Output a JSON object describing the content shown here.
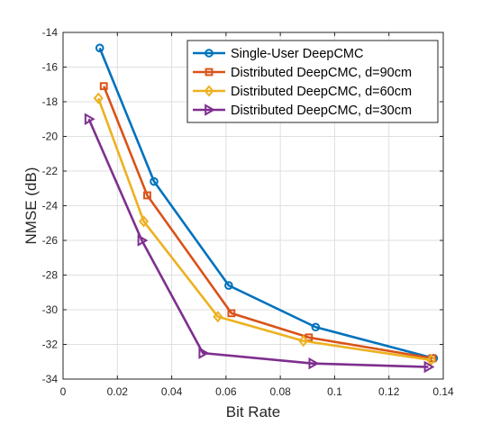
{
  "chart_data": {
    "type": "line",
    "title": "",
    "xlabel": "Bit Rate",
    "ylabel": "NMSE (dB)",
    "xlim": [
      0,
      0.14
    ],
    "ylim": [
      -34,
      -14
    ],
    "xticks": [
      0,
      0.02,
      0.04,
      0.06,
      0.08,
      0.1,
      0.12,
      0.14
    ],
    "xtick_labels": [
      "0",
      "0.02",
      "0.04",
      "0.06",
      "0.08",
      "0.1",
      "0.12",
      "0.14"
    ],
    "yticks": [
      -34,
      -32,
      -30,
      -28,
      -26,
      -24,
      -22,
      -20,
      -18,
      -16,
      -14
    ],
    "ytick_labels": [
      "-34",
      "-32",
      "-30",
      "-28",
      "-26",
      "-24",
      "-22",
      "-20",
      "-18",
      "-16",
      "-14"
    ],
    "grid": true,
    "legend_position": "top-right",
    "series": [
      {
        "name": "Single-User DeepCMC",
        "color": "#0072BD",
        "marker": "circle",
        "x": [
          0.0135,
          0.0335,
          0.061,
          0.093,
          0.1365
        ],
        "y": [
          -14.9,
          -22.6,
          -28.6,
          -31.0,
          -32.8
        ]
      },
      {
        "name": "Distributed DeepCMC, d=90cm",
        "color": "#D95319",
        "marker": "square",
        "x": [
          0.015,
          0.031,
          0.062,
          0.0905,
          0.136
        ],
        "y": [
          -17.1,
          -23.4,
          -30.2,
          -31.6,
          -32.8
        ]
      },
      {
        "name": "Distributed DeepCMC, d=60cm",
        "color": "#EDB120",
        "marker": "diamond",
        "x": [
          0.013,
          0.0297,
          0.057,
          0.0885,
          0.1355
        ],
        "y": [
          -17.8,
          -24.9,
          -30.4,
          -31.8,
          -32.9
        ]
      },
      {
        "name": "Distributed DeepCMC, d=30cm",
        "color": "#7E2F8E",
        "marker": "triangle-right",
        "x": [
          0.0095,
          0.029,
          0.0515,
          0.092,
          0.1345
        ],
        "y": [
          -19.0,
          -26.0,
          -32.5,
          -33.1,
          -33.3
        ]
      }
    ]
  }
}
